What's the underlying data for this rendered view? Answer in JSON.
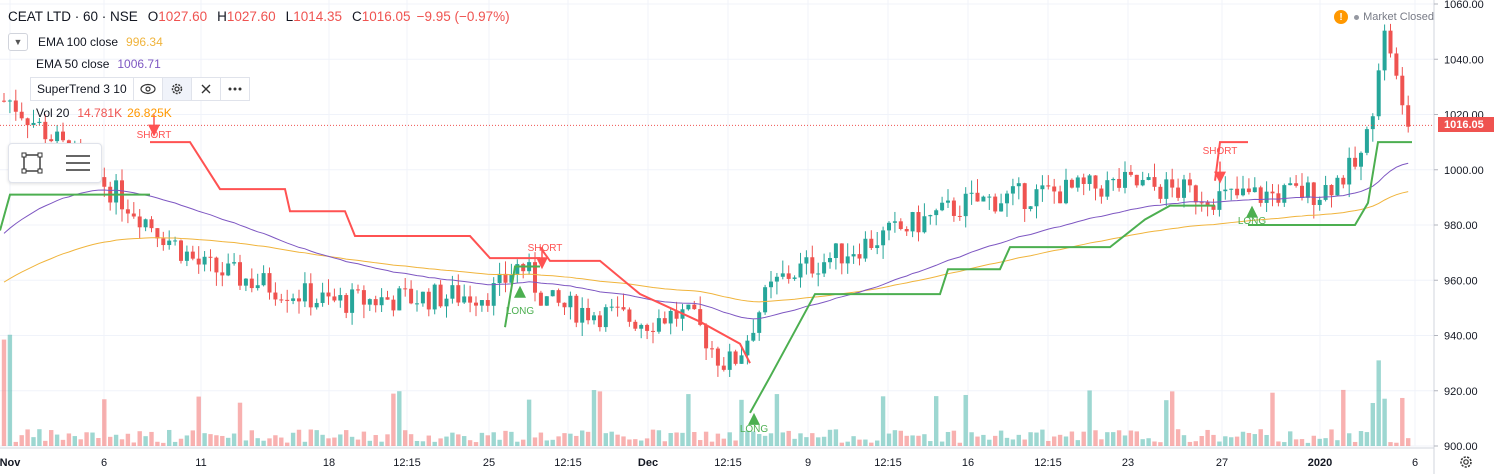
{
  "header": {
    "symbol": "CEAT LTD · 60 · NSE",
    "ohlc": [
      {
        "label": "O",
        "value": "1027.60"
      },
      {
        "label": "H",
        "value": "1027.60"
      },
      {
        "label": "L",
        "value": "1014.35"
      },
      {
        "label": "C",
        "value": "1016.05"
      }
    ],
    "change": "−9.95 (−0.97%)"
  },
  "indicators": {
    "ema100": {
      "name": "EMA 100 close",
      "value": "996.34",
      "color": "#f0b43c"
    },
    "ema50": {
      "name": "EMA 50 close",
      "value": "1006.71",
      "color": "#7e57c2"
    },
    "supertrend": {
      "name": "SuperTrend 3 10"
    },
    "volume": {
      "name": "Vol 20",
      "value1": "14.781K",
      "value2": "26.825K",
      "color1": "#ef5350",
      "color2": "#ff9800"
    }
  },
  "status": {
    "market": "Market Closed"
  },
  "price_axis": {
    "ticks": [
      "1060.00",
      "1040.00",
      "1020.00",
      "1000.00",
      "980.00",
      "960.00",
      "940.00",
      "920.00",
      "900.00"
    ],
    "last_price": "1016.05"
  },
  "time_axis": {
    "ticks": [
      "Nov",
      "6",
      "11",
      "18",
      "12:15",
      "25",
      "12:15",
      "Dec",
      "12:15",
      "9",
      "12:15",
      "16",
      "12:15",
      "23",
      "27",
      "2020",
      "6"
    ]
  },
  "signals": {
    "short": "SHORT",
    "long": "LONG"
  },
  "colors": {
    "up": "#26a69a",
    "down": "#ef5350",
    "st_up": "#4caf50",
    "st_down": "#ff5252",
    "grid": "#f0f3fa"
  },
  "chart_data": {
    "type": "candlestick",
    "symbol": "CEAT LTD",
    "interval": "60",
    "exchange": "NSE",
    "ylim": [
      900,
      1060
    ],
    "anchors_price": [
      {
        "x": "Nov",
        "price": 1025
      },
      {
        "x": "6",
        "price": 995
      },
      {
        "x": "11",
        "price": 965
      },
      {
        "x": "18",
        "price": 952
      },
      {
        "x": "25",
        "price": 955
      },
      {
        "x": "Dec",
        "price": 945
      },
      {
        "x": "9",
        "price": 965
      },
      {
        "x": "16",
        "price": 988
      },
      {
        "x": "23",
        "price": 995
      },
      {
        "x": "27",
        "price": 990
      },
      {
        "x": "2020",
        "price": 992
      },
      {
        "x": "6",
        "price": 1016
      }
    ],
    "extremes": {
      "high": 1055,
      "low": 910,
      "close": 1016.05
    },
    "series": [
      {
        "name": "EMA 100 close",
        "last": 996.34
      },
      {
        "name": "EMA 50 close",
        "last": 1006.71
      },
      {
        "name": "SuperTrend 3 10",
        "last": 1010
      }
    ],
    "signals": [
      {
        "type": "SHORT",
        "x": "6"
      },
      {
        "type": "LONG",
        "x": "25"
      },
      {
        "type": "SHORT",
        "x": "25"
      },
      {
        "type": "LONG",
        "x": "Dec"
      },
      {
        "type": "SHORT",
        "x": "27"
      },
      {
        "type": "LONG",
        "x": "27"
      }
    ]
  }
}
